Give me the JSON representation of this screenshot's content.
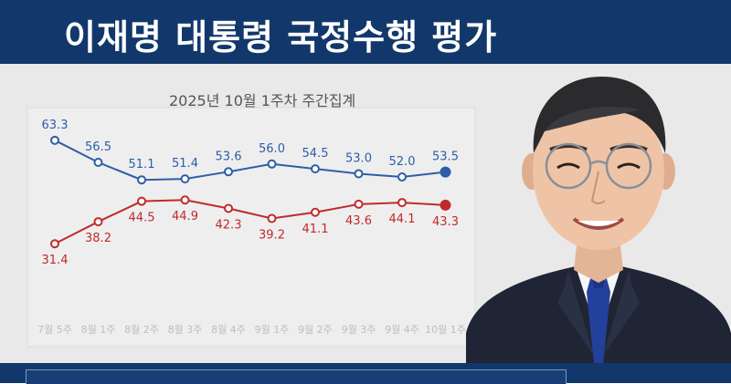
{
  "header": {
    "title": "이재명 대통령 국정수행 평가"
  },
  "chart_data": {
    "type": "line",
    "title": "",
    "subtitle": "2025년 10월 1주차 주간집계",
    "xlabel": "",
    "ylabel": "",
    "categories": [
      "7월 5주",
      "8월 1주",
      "8월 2주",
      "8월 3주",
      "8월 4주",
      "9월 1주",
      "9월 2주",
      "9월 3주",
      "9월 4주",
      "10월 1주"
    ],
    "series": [
      {
        "values": [
          63.3,
          56.5,
          51.1,
          51.4,
          53.6,
          56.0,
          54.5,
          53.0,
          52.0,
          53.5
        ],
        "color": "#2e5ea6"
      },
      {
        "values": [
          31.4,
          38.2,
          44.5,
          44.9,
          42.3,
          39.2,
          41.1,
          43.6,
          44.1,
          43.3
        ],
        "color": "#c22a2a"
      }
    ],
    "ylim": [
      25,
      70
    ],
    "grid": false,
    "legend": "none"
  },
  "colors": {
    "header": "#12386b",
    "panel": "#e9e9ea",
    "blue": "#2e5ea6",
    "red": "#c22a2a"
  }
}
